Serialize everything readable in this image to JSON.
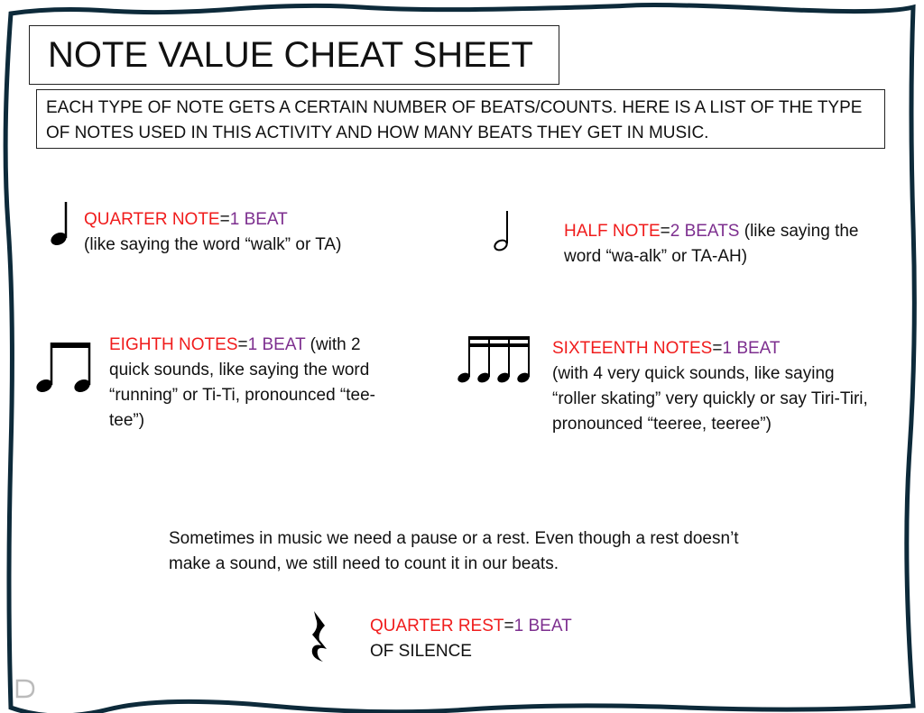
{
  "title": "NOTE VALUE CHEAT SHEET",
  "intro": "EACH TYPE OF NOTE GETS A CERTAIN NUMBER OF BEATS/COUNTS. HERE IS A LIST OF THE TYPE OF NOTES USED IN THIS ACTIVITY AND HOW MANY BEATS THEY GET IN MUSIC.",
  "colors": {
    "note_name": "#f01c1c",
    "beat_value": "#7d2f8f",
    "border": "#0d2a3a"
  },
  "notes": [
    {
      "icon": "quarter-note-icon",
      "name": "QUARTER NOTE",
      "eq": "=",
      "value": "1 BEAT",
      "desc": "(like saying the word “walk” or TA)"
    },
    {
      "icon": "half-note-icon",
      "name": "HALF NOTE",
      "eq": "=",
      "value": "2 BEATS",
      "desc": " (like saying the word “wa-alk” or TA-AH)"
    },
    {
      "icon": "eighth-notes-icon",
      "name": "EIGHTH NOTES",
      "eq": "=",
      "value": "1 BEAT",
      "desc": " (with 2 quick sounds, like saying the word “running” or Ti-Ti, pronounced “tee-tee”)"
    },
    {
      "icon": "sixteenth-notes-icon",
      "name": "SIXTEENTH NOTES",
      "eq": "=",
      "value": "1 BEAT",
      "desc": "(with 4 very quick sounds, like saying “roller skating” very quickly or say Tiri-Tiri, pronounced “teeree, teeree”)"
    }
  ],
  "rest_intro": "Sometimes in music we need a pause or a rest. Even though a rest doesn’t make a sound, we still need to count it in our beats.",
  "rest": {
    "icon": "quarter-rest-icon",
    "name": "QUARTER REST",
    "eq": "=",
    "value": "1 BEAT",
    "desc": "OF SILENCE"
  }
}
